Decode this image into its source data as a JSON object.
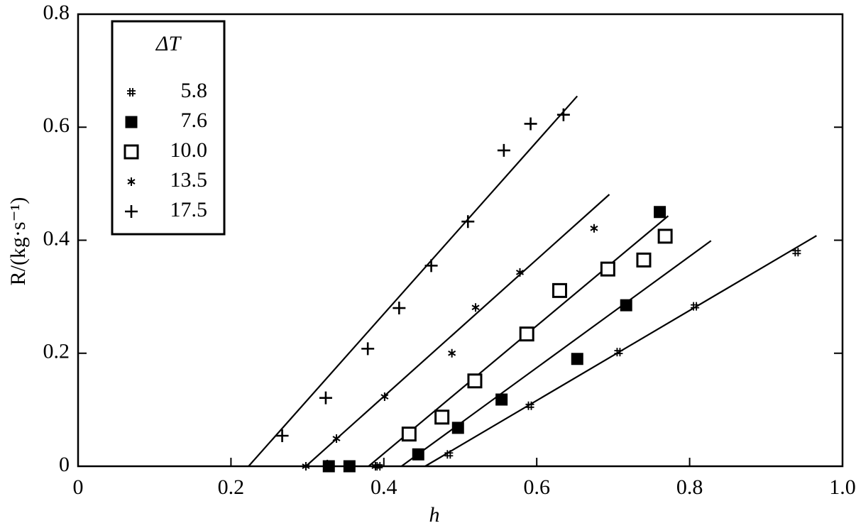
{
  "chart_data": {
    "type": "scatter",
    "x_label": "h",
    "y_label": "R/(kg·s⁻¹)",
    "legend_title": "ΔT",
    "legend": "upper left",
    "xlim": [
      0,
      1
    ],
    "ylim": [
      0,
      0.8
    ],
    "xticks": [
      0,
      0.2,
      0.4,
      0.6,
      0.8,
      {
        "value": 1,
        "label": "1.0"
      }
    ],
    "yticks": [
      0,
      0.2,
      0.4,
      0.6,
      0.8
    ],
    "series": [
      {
        "name": "5.8",
        "color": "#000000",
        "marker": "hash",
        "x": [
          0.393,
          0.485,
          0.591,
          0.707,
          0.807,
          0.94
        ],
        "values": [
          0,
          0.021,
          0.107,
          0.202,
          0.283,
          0.379
        ],
        "fit": {
          "x": [
            0.454,
            0.966
          ],
          "y": [
            0,
            0.408
          ]
        }
      },
      {
        "name": "7.6",
        "color": "#000000",
        "marker": "filled-square",
        "x": [
          0.328,
          0.355,
          0.445,
          0.497,
          0.554,
          0.653,
          0.717,
          0.761
        ],
        "values": [
          0,
          0,
          0.021,
          0.068,
          0.118,
          0.19,
          0.285,
          0.45
        ],
        "fit": {
          "x": [
            0.423,
            0.828
          ],
          "y": [
            0,
            0.399
          ]
        }
      },
      {
        "name": "10.0",
        "color": "#000000",
        "marker": "open-square",
        "x": [
          0.433,
          0.476,
          0.519,
          0.587,
          0.63,
          0.693,
          0.74,
          0.768
        ],
        "values": [
          0.057,
          0.087,
          0.151,
          0.234,
          0.311,
          0.349,
          0.365,
          0.407
        ],
        "fit": {
          "x": [
            0.38,
            0.772
          ],
          "y": [
            0,
            0.443
          ]
        }
      },
      {
        "name": "13.5",
        "color": "#000000",
        "marker": "asterisk",
        "x": [
          0.298,
          0.326,
          0.338,
          0.353,
          0.389,
          0.401,
          0.489,
          0.52,
          0.578,
          0.675
        ],
        "values": [
          0,
          0.004,
          0.049,
          0,
          0,
          0.123,
          0.2,
          0.281,
          0.343,
          0.421
        ],
        "fit": {
          "x": [
            0.298,
            0.695
          ],
          "y": [
            0,
            0.481
          ]
        }
      },
      {
        "name": "17.5",
        "color": "#000000",
        "marker": "plus",
        "x": [
          0.267,
          0.324,
          0.379,
          0.42,
          0.462,
          0.51,
          0.557,
          0.592,
          0.635
        ],
        "values": [
          0.054,
          0.121,
          0.208,
          0.28,
          0.355,
          0.433,
          0.559,
          0.606,
          0.622
        ],
        "fit": {
          "x": [
            0.223,
            0.653
          ],
          "y": [
            0,
            0.655
          ]
        }
      }
    ]
  }
}
